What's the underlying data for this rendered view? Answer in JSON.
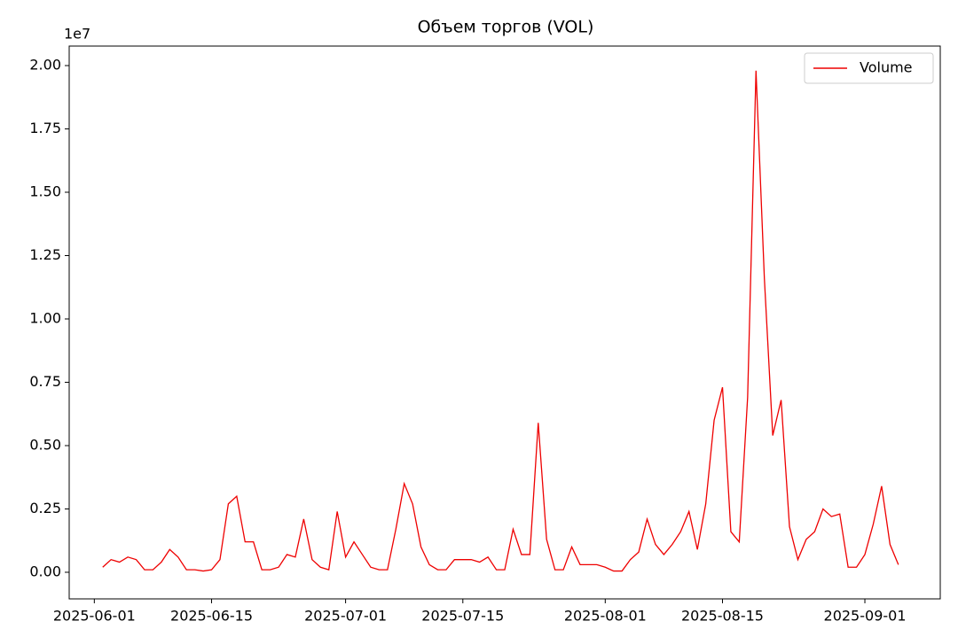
{
  "chart_data": {
    "type": "line",
    "title": "Объем торгов (VOL)",
    "y_offset_label": "1e7",
    "x": [
      "2025-06-02",
      "2025-06-03",
      "2025-06-04",
      "2025-06-05",
      "2025-06-06",
      "2025-06-07",
      "2025-06-08",
      "2025-06-09",
      "2025-06-10",
      "2025-06-11",
      "2025-06-12",
      "2025-06-13",
      "2025-06-14",
      "2025-06-15",
      "2025-06-16",
      "2025-06-17",
      "2025-06-18",
      "2025-06-19",
      "2025-06-20",
      "2025-06-21",
      "2025-06-22",
      "2025-06-23",
      "2025-06-24",
      "2025-06-25",
      "2025-06-26",
      "2025-06-27",
      "2025-06-28",
      "2025-06-29",
      "2025-06-30",
      "2025-07-01",
      "2025-07-02",
      "2025-07-03",
      "2025-07-04",
      "2025-07-05",
      "2025-07-06",
      "2025-07-07",
      "2025-07-08",
      "2025-07-09",
      "2025-07-10",
      "2025-07-11",
      "2025-07-12",
      "2025-07-13",
      "2025-07-14",
      "2025-07-15",
      "2025-07-16",
      "2025-07-17",
      "2025-07-18",
      "2025-07-19",
      "2025-07-20",
      "2025-07-21",
      "2025-07-22",
      "2025-07-23",
      "2025-07-24",
      "2025-07-25",
      "2025-07-26",
      "2025-07-27",
      "2025-07-28",
      "2025-07-29",
      "2025-07-30",
      "2025-07-31",
      "2025-08-01",
      "2025-08-02",
      "2025-08-03",
      "2025-08-04",
      "2025-08-05",
      "2025-08-06",
      "2025-08-07",
      "2025-08-08",
      "2025-08-09",
      "2025-08-10",
      "2025-08-11",
      "2025-08-12",
      "2025-08-13",
      "2025-08-14",
      "2025-08-15",
      "2025-08-16",
      "2025-08-17",
      "2025-08-18",
      "2025-08-19",
      "2025-08-20",
      "2025-08-21",
      "2025-08-22",
      "2025-08-23",
      "2025-08-24",
      "2025-08-25",
      "2025-08-26",
      "2025-08-27",
      "2025-08-28",
      "2025-08-29",
      "2025-08-30",
      "2025-08-31",
      "2025-09-01",
      "2025-09-02",
      "2025-09-03",
      "2025-09-04",
      "2025-09-05"
    ],
    "series": [
      {
        "name": "Volume",
        "color": "#ee0000",
        "values": [
          0.02,
          0.05,
          0.04,
          0.06,
          0.05,
          0.01,
          0.01,
          0.04,
          0.09,
          0.06,
          0.01,
          0.01,
          0.005,
          0.01,
          0.05,
          0.27,
          0.3,
          0.12,
          0.12,
          0.01,
          0.01,
          0.02,
          0.07,
          0.06,
          0.21,
          0.05,
          0.02,
          0.01,
          0.24,
          0.06,
          0.12,
          0.07,
          0.02,
          0.01,
          0.01,
          0.17,
          0.35,
          0.27,
          0.1,
          0.03,
          0.01,
          0.01,
          0.05,
          0.05,
          0.05,
          0.04,
          0.06,
          0.01,
          0.01,
          0.17,
          0.07,
          0.07,
          0.59,
          0.13,
          0.01,
          0.01,
          0.1,
          0.03,
          0.03,
          0.03,
          0.02,
          0.005,
          0.005,
          0.05,
          0.08,
          0.21,
          0.11,
          0.07,
          0.11,
          0.16,
          0.24,
          0.09,
          0.27,
          0.6,
          0.73,
          0.16,
          0.12,
          0.69,
          1.98,
          1.16,
          0.54,
          0.68,
          0.18,
          0.05,
          0.13,
          0.16,
          0.25,
          0.22,
          0.23,
          0.02,
          0.02,
          0.07,
          0.19,
          0.34,
          0.11,
          0.03
        ]
      }
    ],
    "xlim": [
      "2025-05-29",
      "2025-09-10"
    ],
    "xticks": [
      "2025-06-01",
      "2025-06-15",
      "2025-07-01",
      "2025-07-15",
      "2025-08-01",
      "2025-08-15",
      "2025-09-01"
    ],
    "ylim": [
      -0.105,
      2.077
    ],
    "yticks": [
      {
        "value": 0,
        "label": "0.00"
      },
      {
        "value": 0.25,
        "label": "0.25"
      },
      {
        "value": 0.5,
        "label": "0.50"
      },
      {
        "value": 0.75,
        "label": "0.75"
      },
      {
        "value": 1,
        "label": "1.00"
      },
      {
        "value": 1.25,
        "label": "1.25"
      },
      {
        "value": 1.5,
        "label": "1.50"
      },
      {
        "value": 1.75,
        "label": "1.75"
      },
      {
        "value": 2,
        "label": "2.00"
      }
    ],
    "legend": "upper right",
    "grid": false
  }
}
